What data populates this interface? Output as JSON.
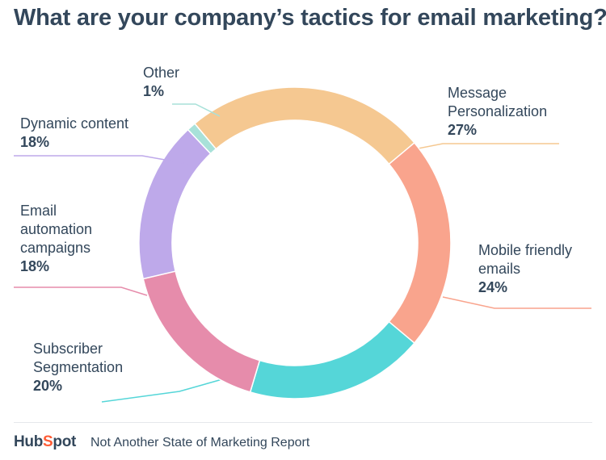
{
  "title": "What are your company’s tactics for email marketing?",
  "footer": {
    "logo": "HubSpot",
    "source": "Not Another State of Marketing Report"
  },
  "chart_data": {
    "type": "pie",
    "title": "What are your company’s tactics for email marketing?",
    "slices": [
      {
        "label": [
          "Message",
          "Personalization"
        ],
        "value": 27,
        "display": "27%",
        "color": "#f5c891"
      },
      {
        "label": [
          "Mobile friendly",
          "emails"
        ],
        "value": 24,
        "display": "24%",
        "color": "#f9a48d"
      },
      {
        "label": [
          "Subscriber",
          "Segmentation"
        ],
        "value": 20,
        "display": "20%",
        "color": "#55d6d8"
      },
      {
        "label": [
          "Email",
          "automation",
          "campaigns"
        ],
        "value": 18,
        "display": "18%",
        "color": "#e68cab"
      },
      {
        "label": [
          "Dynamic content"
        ],
        "value": 18,
        "display": "18%",
        "color": "#bea9ea"
      },
      {
        "label": [
          "Other"
        ],
        "value": 1,
        "display": "1%",
        "color": "#a8e1d9"
      }
    ]
  }
}
